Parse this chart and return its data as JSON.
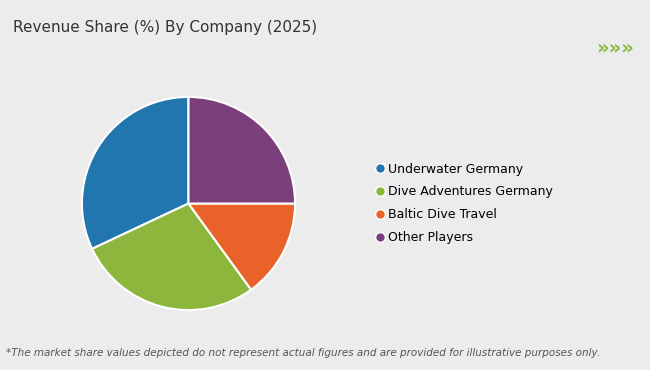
{
  "title": "Revenue Share (%) By Company (2025)",
  "footnote": "*The market share values depicted do not represent actual figures and are provided for illustrative purposes only.",
  "labels": [
    "Underwater Germany",
    "Dive Adventures Germany",
    "Baltic Dive Travel",
    "Other Players"
  ],
  "values": [
    32,
    28,
    15,
    25
  ],
  "colors": [
    "#2176AE",
    "#8DB63C",
    "#E8622A",
    "#7B3F7B"
  ],
  "startangle": 90,
  "background_color": "#ececec",
  "header_bg": "#ffffff",
  "header_line_color": "#8DB63C",
  "arrow_color": "#8DB63C",
  "title_fontsize": 11,
  "legend_fontsize": 9,
  "footnote_fontsize": 7.5
}
